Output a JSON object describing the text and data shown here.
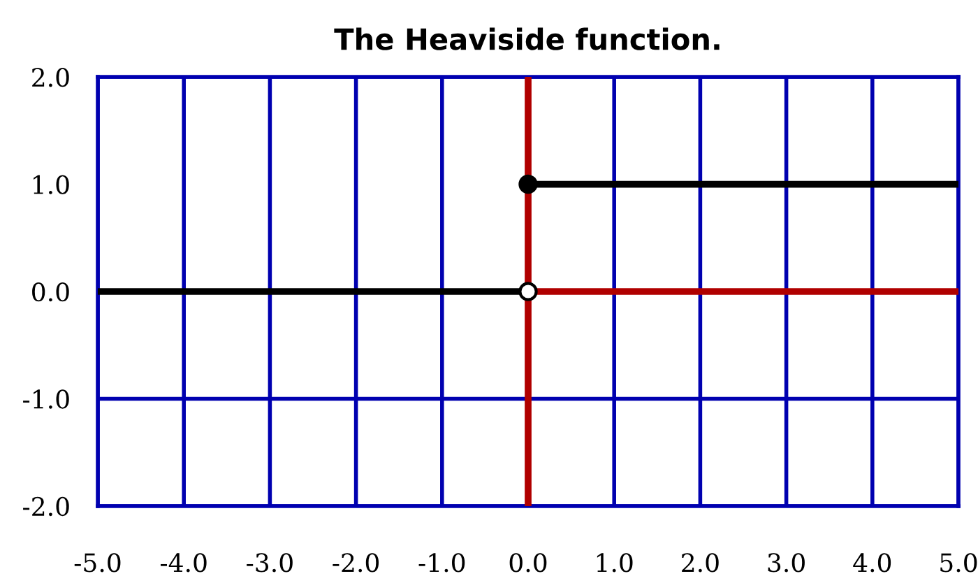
{
  "chart_data": {
    "type": "line",
    "title": "The Heaviside function.",
    "series": [
      {
        "color": "#b00000",
        "x": [
          0,
          0
        ],
        "values": [
          -2,
          2
        ]
      },
      {
        "color": "#b00000",
        "x": [
          0,
          5
        ],
        "values": [
          0,
          0
        ]
      },
      {
        "color": "#000000",
        "x": [
          -5,
          0
        ],
        "values": [
          0,
          0
        ]
      },
      {
        "color": "#000000",
        "x": [
          0,
          5
        ],
        "values": [
          1,
          1
        ]
      },
      {
        "type": "scatter",
        "color": "#000000",
        "x": [
          0
        ],
        "values": [
          1
        ],
        "marker": "circle"
      },
      {
        "type": "scatter",
        "color": "#ffffff",
        "x": [
          0
        ],
        "values": [
          0
        ],
        "marker": "circle"
      }
    ],
    "xlim": [
      -5,
      5
    ],
    "ylim": [
      -2,
      2
    ],
    "xticks": [
      {
        "value": -5,
        "label": "-5.0"
      },
      {
        "value": -4,
        "label": "-4.0"
      },
      {
        "value": -3,
        "label": "-3.0"
      },
      {
        "value": -2,
        "label": "-2.0"
      },
      {
        "value": -1,
        "label": "-1.0"
      },
      {
        "value": 0,
        "label": "0.0"
      },
      {
        "value": 1,
        "label": "1.0"
      },
      {
        "value": 2,
        "label": "2.0"
      },
      {
        "value": 3,
        "label": "3.0"
      },
      {
        "value": 4,
        "label": "4.0"
      },
      {
        "value": 5,
        "label": "5.0"
      }
    ],
    "yticks": [
      {
        "value": -2,
        "label": "-2.0"
      },
      {
        "value": -1,
        "label": "-1.0"
      },
      {
        "value": 0,
        "label": "0.0"
      },
      {
        "value": 1,
        "label": "1.0"
      },
      {
        "value": 2,
        "label": "2.0"
      }
    ],
    "grid": true
  }
}
